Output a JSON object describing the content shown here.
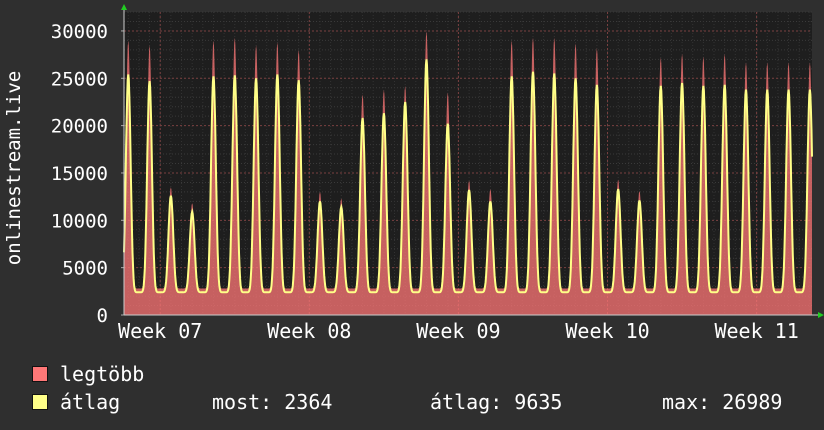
{
  "chart_data": {
    "type": "area",
    "ylabel": "onlinestream.live",
    "ylim": [
      0,
      32000
    ],
    "y_ticks": [
      0,
      5000,
      10000,
      15000,
      20000,
      25000,
      30000
    ],
    "x_tick_labels": [
      "Week 07",
      "Week 08",
      "Week 09",
      "Week 10",
      "Week 11"
    ],
    "x_tick_positions_days": [
      0,
      7,
      14,
      21,
      28
    ],
    "x_start_day": -1.7,
    "x_end_day": 30.6,
    "grid": true,
    "series": [
      {
        "name": "legtöbb",
        "color": "#ff7777",
        "daily_peaks": [
          29000,
          28500,
          13500,
          11800,
          29000,
          29300,
          28500,
          28800,
          28000,
          13000,
          12300,
          23300,
          23800,
          24200,
          30000,
          23500,
          14200,
          13300,
          29000,
          29300,
          29300,
          28700,
          28200,
          14300,
          13100,
          27200,
          27600,
          27300,
          27600,
          26700
        ],
        "baseline": 2800
      },
      {
        "name": "átlag",
        "color": "#ffff88",
        "daily_peaks": [
          25400,
          24700,
          12600,
          10900,
          25200,
          25300,
          25000,
          25400,
          24800,
          12000,
          11400,
          20800,
          21300,
          22500,
          27000,
          20200,
          13200,
          12000,
          25200,
          25700,
          25500,
          25000,
          24300,
          13300,
          12100,
          24200,
          24500,
          24200,
          24300,
          23800
        ],
        "baseline": 2400
      }
    ]
  },
  "legend": {
    "max_label": "legtöbb",
    "avg_label": "átlag",
    "now": "most: 2364",
    "avg": "átlag: 9635",
    "max": "max: 26989"
  }
}
